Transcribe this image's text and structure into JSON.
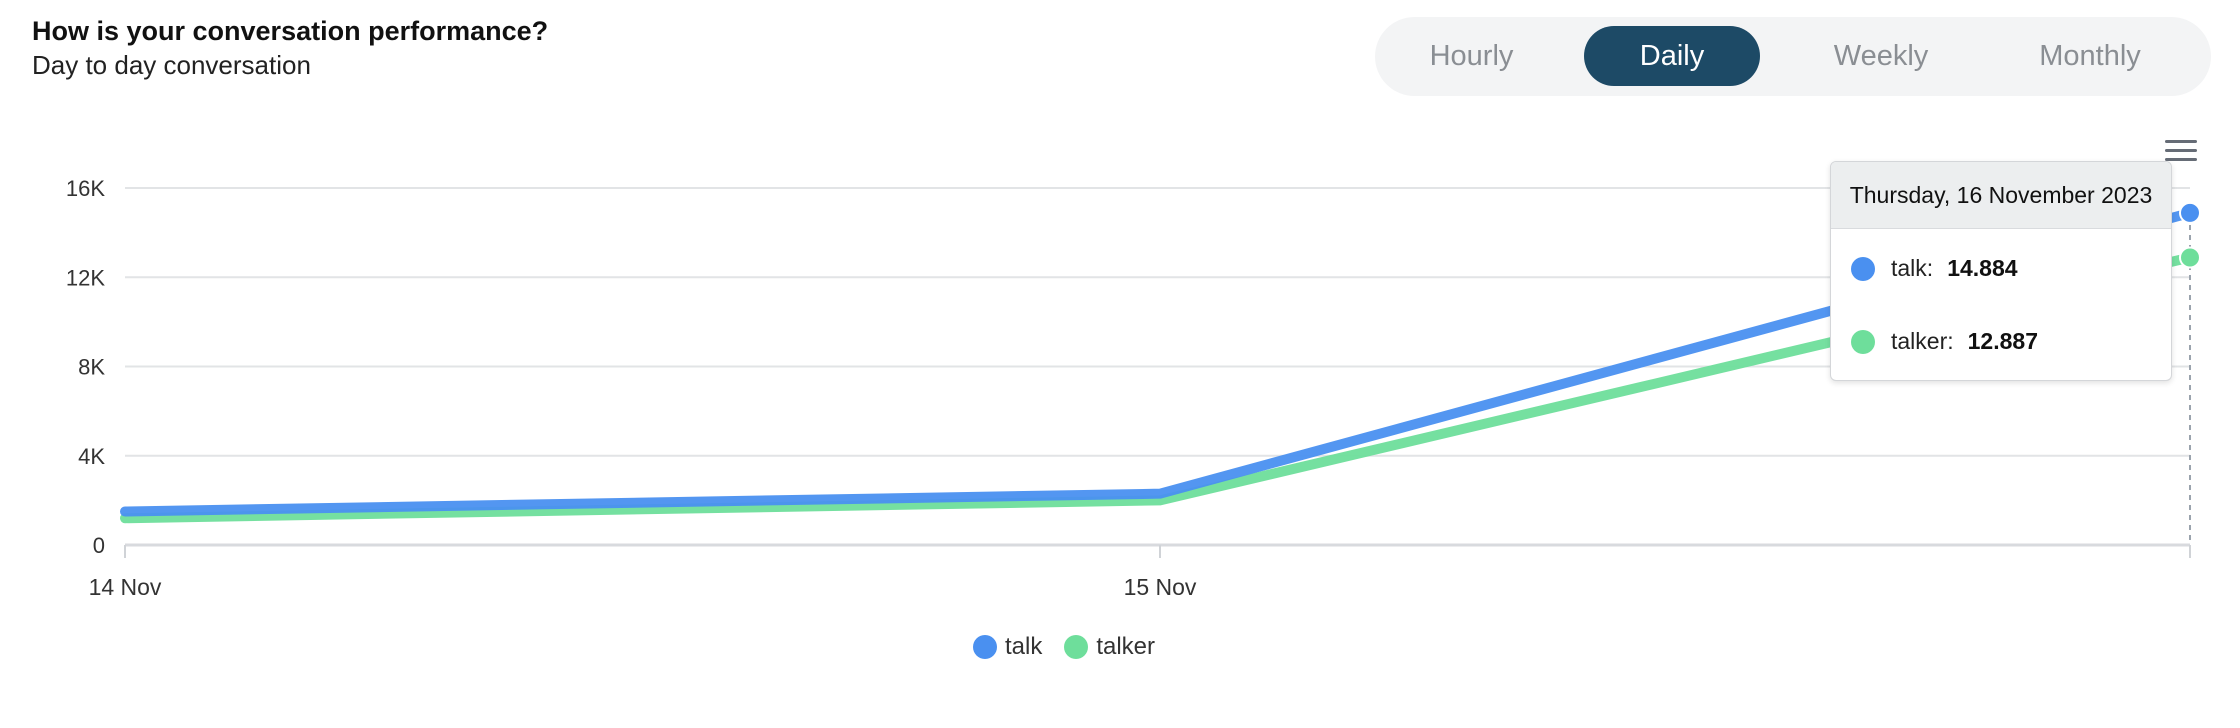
{
  "header": {
    "title": "How is your conversation performance?",
    "subtitle": "Day to day conversation"
  },
  "range_tabs": [
    {
      "label": "Hourly",
      "active": false
    },
    {
      "label": "Daily",
      "active": true
    },
    {
      "label": "Weekly",
      "active": false
    },
    {
      "label": "Monthly",
      "active": false
    }
  ],
  "colors": {
    "talk": "#4a90f0",
    "talker": "#6ede9b",
    "active_tab": "#1d4a66"
  },
  "icons": {
    "menu": "hamburger-menu-icon"
  },
  "tooltip": {
    "date": "Thursday, 16 November 2023",
    "rows": [
      {
        "name": "talk:",
        "value": "14.884",
        "color": "#4a90f0"
      },
      {
        "name": "talker:",
        "value": "12.887",
        "color": "#6ede9b"
      }
    ]
  },
  "chart_data": {
    "type": "line",
    "categories": [
      "14 Nov",
      "15 Nov",
      "16 Nov"
    ],
    "x_tick_labels": [
      "14 Nov",
      "15 Nov"
    ],
    "y_tick_labels": [
      "0",
      "4K",
      "8K",
      "12K",
      "16K"
    ],
    "ylim": [
      0,
      16000
    ],
    "grid": true,
    "legend_position": "bottom-center",
    "series": [
      {
        "name": "talk",
        "color": "#4a90f0",
        "values": [
          1500,
          2300,
          14884
        ]
      },
      {
        "name": "talker",
        "color": "#6ede9b",
        "values": [
          1200,
          2000,
          12887
        ]
      }
    ]
  }
}
